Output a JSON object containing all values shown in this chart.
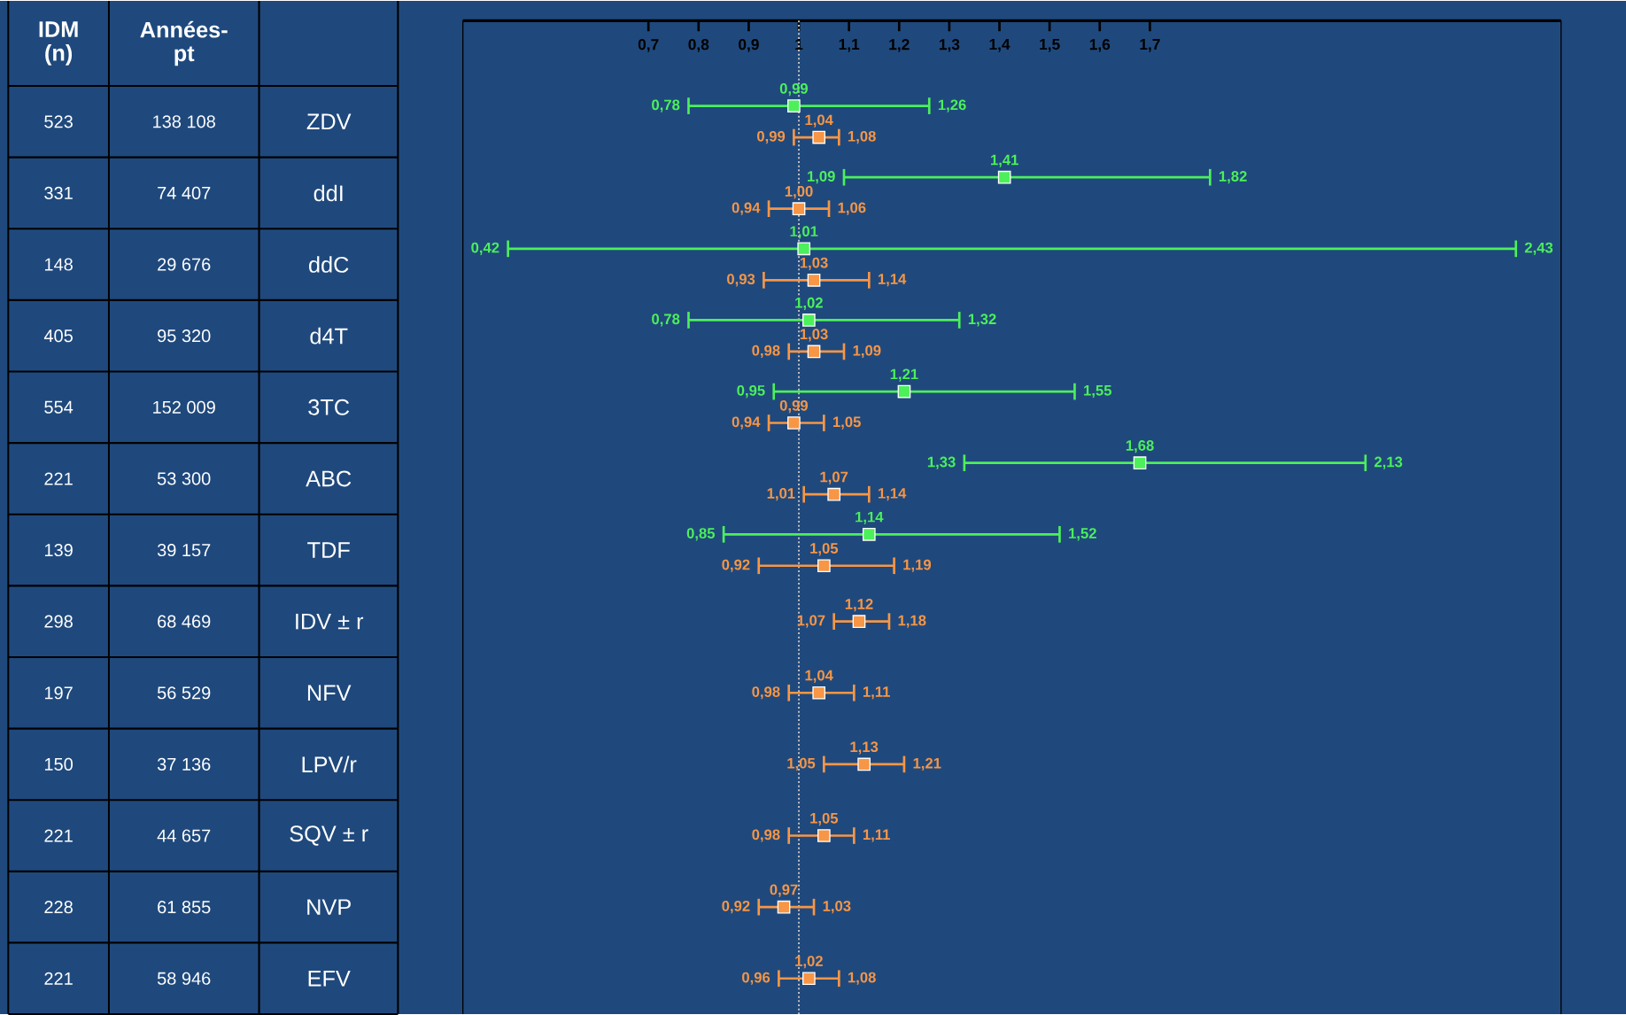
{
  "chart_data": [
    {
      "type": "other",
      "categories": [
        "IDM (n)",
        "Années-pt"
      ],
      "cells": [
        [
          "523",
          "138 108"
        ],
        [
          "331",
          "74 407"
        ],
        [
          "148",
          "29 676"
        ],
        [
          "405",
          "95 320"
        ],
        [
          "554",
          "152 009"
        ],
        [
          "221",
          "53 300"
        ],
        [
          "139",
          "39 157"
        ],
        [
          "298",
          "68 469"
        ],
        [
          "197",
          "56 529"
        ],
        [
          "150",
          "37 136"
        ],
        [
          "221",
          "44 657"
        ],
        [
          "228",
          "61 855"
        ],
        [
          "221",
          "58 946"
        ]
      ]
    },
    {
      "type": "scatter",
      "orientation": "horizontal",
      "marker": "square",
      "categories": [
        "ZDV",
        "ddI",
        "ddC",
        "d4T",
        "3TC",
        "ABC",
        "TDF",
        "IDV ± r",
        "NFV",
        "LPV/r",
        "SQV ± r",
        "NVP",
        "EFV"
      ],
      "xlim": [
        0.33,
        2.52
      ],
      "xticks": [
        {
          "value": 0.7,
          "label": "0,7"
        },
        {
          "value": 0.8,
          "label": "0,8"
        },
        {
          "value": 0.9,
          "label": "0,9"
        },
        {
          "value": 1,
          "label": "1"
        },
        {
          "value": 1.1,
          "label": "1,1"
        },
        {
          "value": 1.2,
          "label": "1,2"
        },
        {
          "value": 1.3,
          "label": "1,3"
        },
        {
          "value": 1.4,
          "label": "1,4"
        },
        {
          "value": 1.5,
          "label": "1,5"
        },
        {
          "value": 1.6,
          "label": "1,6"
        },
        {
          "value": 1.7,
          "label": "1,7"
        }
      ],
      "ref_lines": [
        {
          "axis": "x",
          "value": 1,
          "line_style": "dotted",
          "color": "#bfbfbf"
        }
      ],
      "series": [
        {
          "color": "#4cf05a",
          "values": [
            0.99,
            1.41,
            1.01,
            1.02,
            1.21,
            1.68,
            1.14,
            null,
            null,
            null,
            null,
            null,
            null
          ],
          "errors": [
            [
              0.78,
              1.26
            ],
            [
              1.09,
              1.82
            ],
            [
              0.42,
              2.43
            ],
            [
              0.78,
              1.32
            ],
            [
              0.95,
              1.55
            ],
            [
              1.33,
              2.13
            ],
            [
              0.85,
              1.52
            ],
            null,
            null,
            null,
            null,
            null,
            null
          ],
          "value_labels": [
            "0,99",
            "1,41",
            "1,01",
            "1,02",
            "1,21",
            "1,68",
            "1,14",
            null,
            null,
            null,
            null,
            null,
            null
          ]
        },
        {
          "color": "#f79646",
          "values": [
            1.04,
            1.0,
            1.03,
            1.03,
            0.99,
            1.07,
            1.05,
            1.12,
            1.04,
            1.13,
            1.05,
            0.97,
            1.02
          ],
          "errors": [
            [
              0.99,
              1.08
            ],
            [
              0.94,
              1.06
            ],
            [
              0.93,
              1.14
            ],
            [
              0.98,
              1.09
            ],
            [
              0.94,
              1.05
            ],
            [
              1.01,
              1.14
            ],
            [
              0.92,
              1.19
            ],
            [
              1.07,
              1.18
            ],
            [
              0.98,
              1.11
            ],
            [
              1.05,
              1.21
            ],
            [
              0.98,
              1.11
            ],
            [
              0.92,
              1.03
            ],
            [
              0.96,
              1.08
            ]
          ],
          "value_labels": [
            "1,04",
            "1,00",
            "1,03",
            "1,03",
            "0,99",
            "1,07",
            "1,05",
            "1,12",
            "1,04",
            "1,13",
            "1,05",
            "0,97",
            "1,02"
          ]
        }
      ],
      "annotations": [
        "0,78",
        "1,26",
        "1,09",
        "1,82",
        "0,42",
        "2,43",
        "0,78",
        "1,32",
        "0,95",
        "1,55",
        "1,33",
        "2,13",
        "0,85",
        "1,52",
        "0,99",
        "1,08",
        "0,94",
        "1,06",
        "0,93",
        "1,14",
        "0,98",
        "1,09",
        "0,94",
        "1,05",
        "1,01",
        "1,14",
        "0,92",
        "1,19",
        "1,07",
        "1,18",
        "0,98",
        "1,11",
        "1,05",
        "1,21",
        "0,98",
        "1,11",
        "0,92",
        "1,03",
        "0,96",
        "1,08"
      ]
    }
  ]
}
